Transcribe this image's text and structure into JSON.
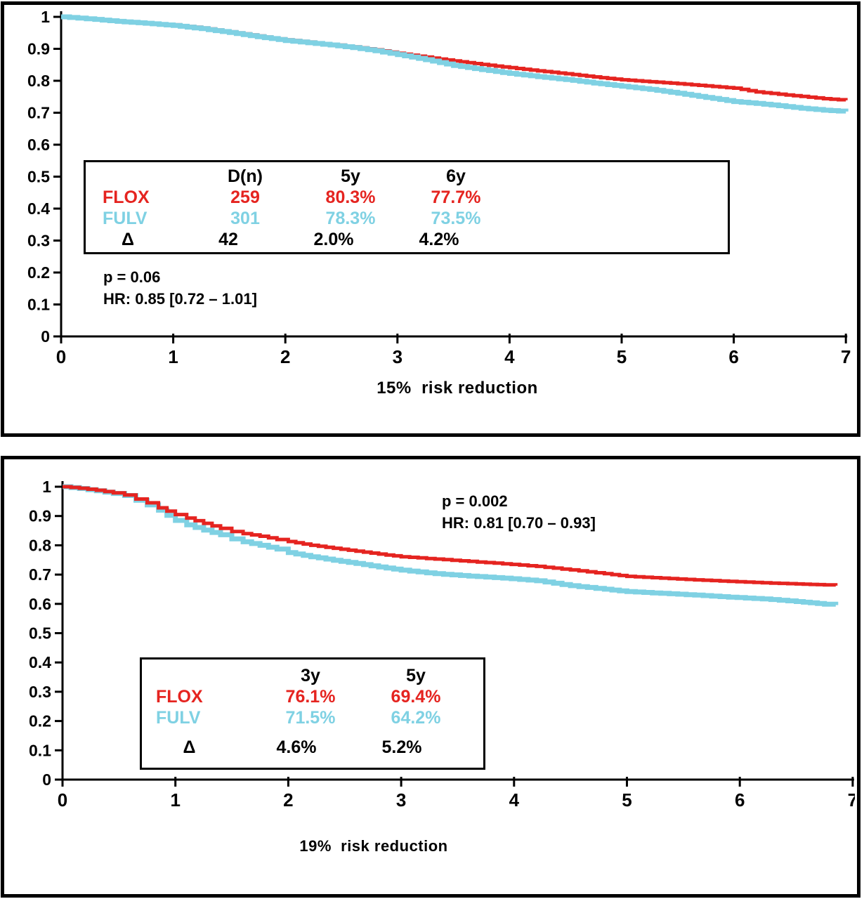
{
  "colors": {
    "flox": "#e52420",
    "fulv": "#7fd1e3",
    "axis": "#000000",
    "delta": "#000000"
  },
  "chart_data": [
    {
      "type": "line",
      "subtype": "kaplan-meier-step",
      "title": "15%  risk reduction",
      "xlabel": "15%  risk reduction",
      "ylabel": "",
      "xlim": [
        0,
        7
      ],
      "ylim": [
        0,
        1
      ],
      "x_ticks": [
        "0",
        "1",
        "2",
        "3",
        "4",
        "5",
        "6",
        "7"
      ],
      "y_ticks": [
        "1",
        "0.9",
        "0.8",
        "0.7",
        "0.6",
        "0.5",
        "0.4",
        "0.3",
        "0.2",
        "0.1",
        "0"
      ],
      "grid": false,
      "annotations": {
        "p": "p = 0.06",
        "hr": "HR: 0.85 [0.72 – 1.01]"
      },
      "legend_table": {
        "headers": [
          "",
          "D(n)",
          "5y",
          "6y"
        ],
        "rows": [
          {
            "label": "FLOX",
            "color": "#e52420",
            "values": [
              "259",
              "80.3%",
              "77.7%"
            ]
          },
          {
            "label": "FULV",
            "color": "#7fd1e3",
            "values": [
              "301",
              "78.3%",
              "73.5%"
            ]
          },
          {
            "label": "Δ",
            "color": "#000000",
            "values": [
              "42",
              "2.0%",
              "4.2%"
            ]
          }
        ]
      },
      "series": [
        {
          "name": "FLOX",
          "color": "#e52420",
          "x": [
            0,
            0.15,
            0.3,
            0.5,
            0.75,
            1.0,
            1.25,
            1.5,
            1.75,
            2.0,
            2.2,
            2.4,
            2.6,
            2.8,
            3.0,
            3.25,
            3.5,
            3.75,
            4.0,
            4.25,
            4.5,
            4.75,
            5.0,
            5.25,
            5.5,
            5.75,
            6.0,
            6.2,
            6.4,
            6.6,
            6.8,
            7.0
          ],
          "y": [
            1.0,
            0.997,
            0.993,
            0.987,
            0.981,
            0.975,
            0.965,
            0.953,
            0.94,
            0.928,
            0.921,
            0.914,
            0.906,
            0.897,
            0.886,
            0.874,
            0.862,
            0.851,
            0.841,
            0.831,
            0.822,
            0.812,
            0.803,
            0.797,
            0.791,
            0.784,
            0.777,
            0.765,
            0.758,
            0.751,
            0.744,
            0.739
          ]
        },
        {
          "name": "FULV",
          "color": "#7fd1e3",
          "x": [
            0,
            0.15,
            0.3,
            0.5,
            0.75,
            1.0,
            1.25,
            1.5,
            1.75,
            2.0,
            2.2,
            2.4,
            2.6,
            2.8,
            3.0,
            3.25,
            3.5,
            3.75,
            4.0,
            4.25,
            4.5,
            4.75,
            5.0,
            5.25,
            5.5,
            5.75,
            6.0,
            6.2,
            6.4,
            6.6,
            6.8,
            7.0
          ],
          "y": [
            1.0,
            0.996,
            0.992,
            0.986,
            0.98,
            0.973,
            0.963,
            0.951,
            0.938,
            0.926,
            0.919,
            0.912,
            0.904,
            0.894,
            0.882,
            0.866,
            0.848,
            0.835,
            0.823,
            0.813,
            0.804,
            0.793,
            0.783,
            0.773,
            0.761,
            0.748,
            0.735,
            0.729,
            0.722,
            0.714,
            0.708,
            0.704
          ]
        }
      ]
    },
    {
      "type": "line",
      "subtype": "kaplan-meier-step",
      "title": "19%  risk reduction",
      "xlabel": "19%  risk reduction",
      "ylabel": "",
      "xlim": [
        0,
        7
      ],
      "ylim": [
        0,
        1
      ],
      "x_ticks": [
        "0",
        "1",
        "2",
        "3",
        "4",
        "5",
        "6",
        "7"
      ],
      "y_ticks": [
        "1",
        "0.9",
        "0.8",
        "0.7",
        "0.6",
        "0.5",
        "0.4",
        "0.3",
        "0.2",
        "0.1",
        "0"
      ],
      "grid": false,
      "annotations": {
        "p": "p = 0.002",
        "hr": "HR: 0.81 [0.70 – 0.93]"
      },
      "legend_table": {
        "headers": [
          "",
          "3y",
          "5y"
        ],
        "rows": [
          {
            "label": "FLOX",
            "color": "#e52420",
            "values": [
              "76.1%",
              "69.4%"
            ]
          },
          {
            "label": "FULV",
            "color": "#7fd1e3",
            "values": [
              "71.5%",
              "64.2%"
            ]
          },
          {
            "label": "Δ",
            "color": "#000000",
            "values": [
              "4.6%",
              "5.2%"
            ]
          }
        ]
      },
      "series": [
        {
          "name": "FLOX",
          "color": "#e52420",
          "x": [
            0,
            0.15,
            0.3,
            0.45,
            0.55,
            0.65,
            0.75,
            0.85,
            1.0,
            1.1,
            1.25,
            1.4,
            1.5,
            1.6,
            1.75,
            1.9,
            2.0,
            2.2,
            2.4,
            2.6,
            2.8,
            3.0,
            3.3,
            3.6,
            3.9,
            4.2,
            4.5,
            4.8,
            5.0,
            5.3,
            5.6,
            5.9,
            6.2,
            6.5,
            6.75,
            6.85
          ],
          "y": [
            1.0,
            0.995,
            0.988,
            0.979,
            0.972,
            0.958,
            0.945,
            0.928,
            0.905,
            0.893,
            0.875,
            0.858,
            0.847,
            0.84,
            0.831,
            0.82,
            0.813,
            0.8,
            0.79,
            0.78,
            0.77,
            0.761,
            0.753,
            0.745,
            0.737,
            0.728,
            0.716,
            0.703,
            0.694,
            0.688,
            0.682,
            0.677,
            0.672,
            0.668,
            0.665,
            0.662
          ]
        },
        {
          "name": "FULV",
          "color": "#7fd1e3",
          "x": [
            0,
            0.15,
            0.3,
            0.45,
            0.55,
            0.65,
            0.75,
            0.85,
            1.0,
            1.1,
            1.25,
            1.4,
            1.5,
            1.6,
            1.75,
            1.9,
            2.0,
            2.2,
            2.4,
            2.6,
            2.8,
            3.0,
            3.3,
            3.6,
            3.9,
            4.2,
            4.5,
            4.8,
            5.0,
            5.3,
            5.6,
            5.9,
            6.2,
            6.5,
            6.75,
            6.85
          ],
          "y": [
            1.0,
            0.994,
            0.986,
            0.977,
            0.97,
            0.954,
            0.938,
            0.92,
            0.885,
            0.87,
            0.852,
            0.836,
            0.822,
            0.812,
            0.8,
            0.787,
            0.775,
            0.761,
            0.749,
            0.738,
            0.726,
            0.715,
            0.703,
            0.695,
            0.688,
            0.679,
            0.662,
            0.65,
            0.642,
            0.636,
            0.63,
            0.623,
            0.617,
            0.608,
            0.599,
            0.596
          ]
        }
      ]
    }
  ]
}
